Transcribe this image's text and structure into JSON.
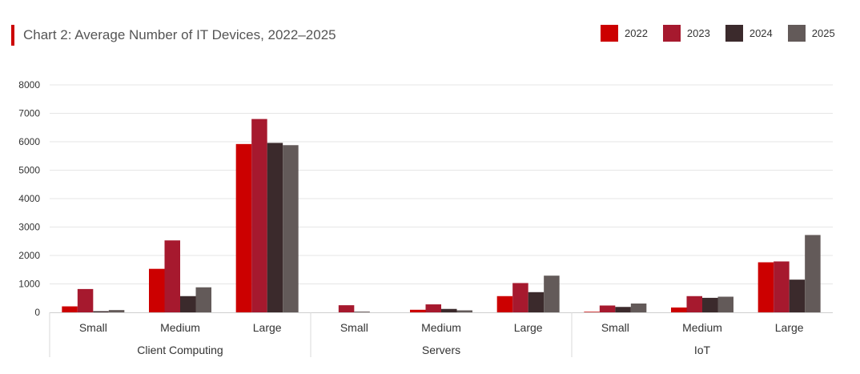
{
  "chart_data": {
    "type": "bar",
    "title": "Chart 2: Average Number of IT Devices, 2022–2025",
    "legend_placement": "top-right",
    "grid": true,
    "ylim": [
      0,
      8000
    ],
    "yticks": [
      "0",
      "1000",
      "2000",
      "3000",
      "4000",
      "5000",
      "6000",
      "7000",
      "8000"
    ],
    "groups": [
      {
        "name": "Client Computing",
        "categories": [
          "Small",
          "Medium",
          "Large"
        ]
      },
      {
        "name": "Servers",
        "categories": [
          "Small",
          "Medium",
          "Large"
        ]
      },
      {
        "name": "IoT",
        "categories": [
          "Small",
          "Medium",
          "Large"
        ]
      }
    ],
    "series": [
      {
        "name": "2022",
        "color": "#cc0000",
        "values": [
          210,
          1530,
          5920,
          0,
          90,
          570,
          20,
          170,
          1760
        ]
      },
      {
        "name": "2023",
        "color": "#a6192e",
        "values": [
          820,
          2530,
          6800,
          250,
          280,
          1030,
          240,
          570,
          1790
        ]
      },
      {
        "name": "2024",
        "color": "#3b2a2c",
        "values": [
          40,
          570,
          5960,
          20,
          120,
          710,
          190,
          510,
          1150
        ]
      },
      {
        "name": "2025",
        "color": "#635a59",
        "values": [
          80,
          880,
          5880,
          0,
          70,
          1290,
          310,
          550,
          2720
        ]
      }
    ]
  }
}
